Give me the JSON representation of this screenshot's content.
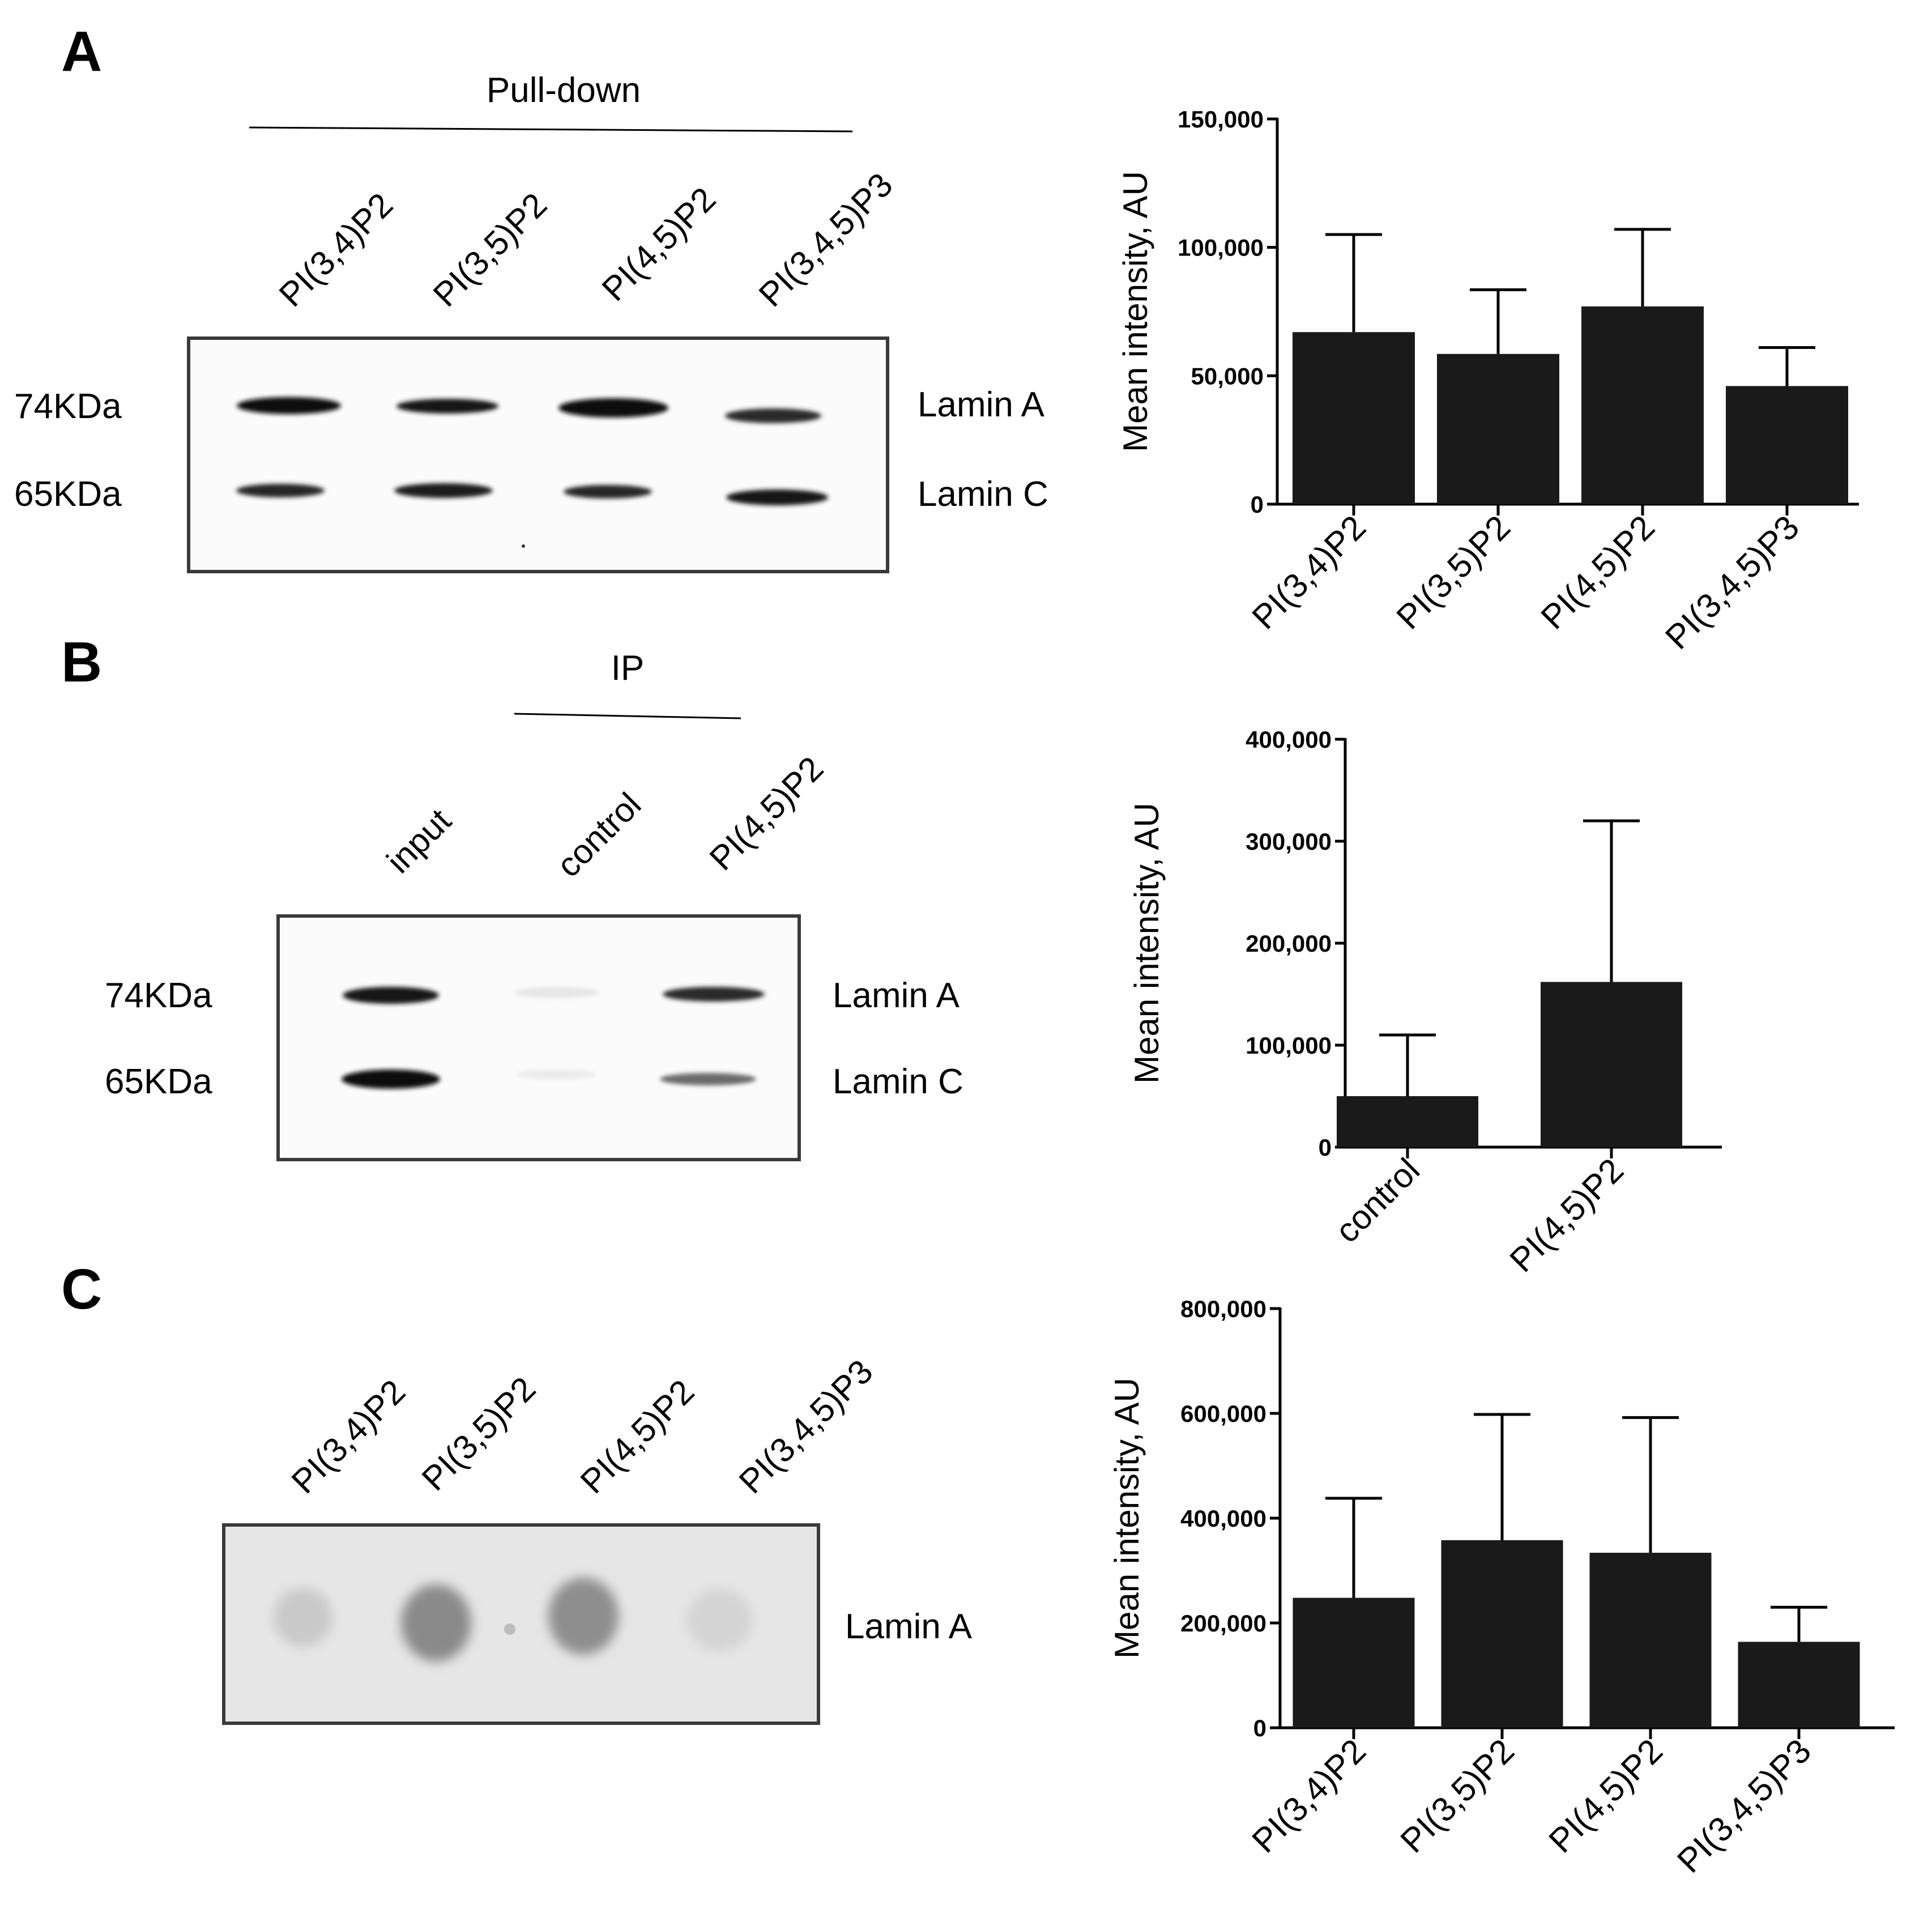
{
  "panels": {
    "A": {
      "letter": "A",
      "group_label": "Pull-down",
      "lanes": [
        "PI(3,4)P2",
        "PI(3,5)P2",
        "PI(4,5)P2",
        "PI(3,4,5)P3"
      ],
      "markers": [
        "74KDa",
        "65KDa"
      ],
      "bands": [
        "Lamin A",
        "Lamin C"
      ]
    },
    "B": {
      "letter": "B",
      "group_label": "IP",
      "lanes": [
        "input",
        "control",
        "PI(4,5)P2"
      ],
      "markers": [
        "74KDa",
        "65KDa"
      ],
      "bands": [
        "Lamin A",
        "Lamin C"
      ]
    },
    "C": {
      "letter": "C",
      "lanes": [
        "PI(3,4)P2",
        "PI(3,5)P2",
        "PI(4,5)P2",
        "PI(3,4,5)P3"
      ],
      "bands": [
        "Lamin A"
      ]
    }
  },
  "chart_data": [
    {
      "type": "bar",
      "panel": "A",
      "categories": [
        "PI(3,4)P2",
        "PI(3,5)P2",
        "PI(4,5)P2",
        "PI(3,4,5)P3"
      ],
      "values": [
        67000,
        58500,
        77000,
        46000
      ],
      "errors": [
        38000,
        25000,
        30000,
        15000
      ],
      "ylabel": "Mean intensity, AU",
      "ylim": [
        0,
        150000
      ],
      "yticks": [
        0,
        50000,
        100000,
        150000
      ],
      "ytick_labels": [
        "0",
        "50,000",
        "100,000",
        "150,000"
      ],
      "bar_color": "#1a1a1a"
    },
    {
      "type": "bar",
      "panel": "B",
      "categories": [
        "control",
        "PI(4,5)P2"
      ],
      "values": [
        50000,
        162000
      ],
      "errors": [
        60000,
        158000
      ],
      "ylabel": "Mean intensity, AU",
      "ylim": [
        0,
        400000
      ],
      "yticks": [
        0,
        100000,
        200000,
        300000,
        400000
      ],
      "ytick_labels": [
        "0",
        "100,000",
        "200,000",
        "300,000",
        "400,000"
      ],
      "bar_color": "#1a1a1a"
    },
    {
      "type": "bar",
      "panel": "C",
      "categories": [
        "PI(3,4)P2",
        "PI(3,5)P2",
        "PI(4,5)P2",
        "PI(3,4,5)P3"
      ],
      "values": [
        248000,
        358000,
        334000,
        164000
      ],
      "errors": [
        190000,
        240000,
        258000,
        66000
      ],
      "ylabel": "Mean intensity, AU",
      "ylim": [
        0,
        800000
      ],
      "yticks": [
        0,
        200000,
        400000,
        600000,
        800000
      ],
      "ytick_labels": [
        "0",
        "200,000",
        "400,000",
        "600,000",
        "800,000"
      ],
      "bar_color": "#1a1a1a"
    }
  ]
}
